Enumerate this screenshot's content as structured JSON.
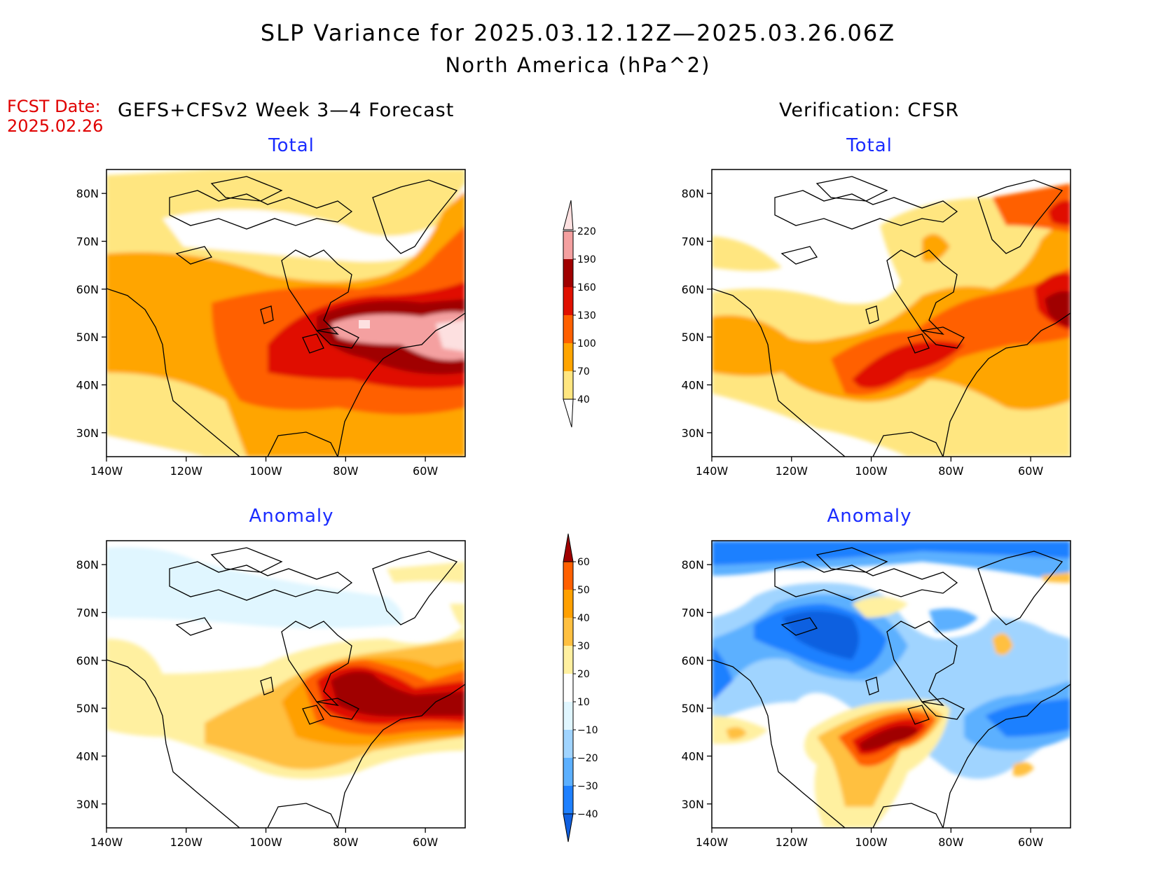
{
  "header": {
    "title": "SLP Variance for 2025.03.12.12Z—2025.03.26.06Z",
    "subtitle": "North America (hPa^2)",
    "fcst_label": "FCST Date:",
    "fcst_date": "2025.02.26",
    "left_heading": "GEFS+CFSv2 Week 3—4 Forecast",
    "right_heading": "Verification: CFSR"
  },
  "panels": {
    "fc_total": {
      "title": "Total"
    },
    "ver_total": {
      "title": "Total"
    },
    "fc_anom": {
      "title": "Anomaly"
    },
    "ver_anom": {
      "title": "Anomaly"
    }
  },
  "axes": {
    "lat_labels": [
      "80N",
      "70N",
      "60N",
      "50N",
      "40N",
      "30N"
    ],
    "lon_labels": [
      "140W",
      "120W",
      "100W",
      "80W",
      "60W"
    ],
    "lat_values": [
      80,
      70,
      60,
      50,
      40,
      30
    ],
    "lon_values": [
      -140,
      -120,
      -100,
      -80,
      -60
    ],
    "lat_range": [
      25,
      85
    ],
    "lon_range": [
      -140,
      -50
    ]
  },
  "colorbars": {
    "total": {
      "labels": [
        "40",
        "70",
        "100",
        "130",
        "160",
        "190",
        "220"
      ],
      "values": [
        40,
        70,
        100,
        130,
        160,
        190,
        220
      ],
      "colors": [
        "#ffe680",
        "#ffa500",
        "#ff6000",
        "#e01000",
        "#a00000",
        "#f4a0a0",
        "#fde0e0"
      ]
    },
    "anomaly": {
      "labels": [
        "−40",
        "−30",
        "−20",
        "−10",
        "10",
        "20",
        "30",
        "40",
        "50",
        "60"
      ],
      "values": [
        -40,
        -30,
        -20,
        -10,
        10,
        20,
        30,
        40,
        50,
        60
      ],
      "colors": [
        "#1060e0",
        "#1e80ff",
        "#5cb0ff",
        "#a0d4ff",
        "#e0f6ff",
        "#ffffff",
        "#fff0a0",
        "#ffc040",
        "#ffa000",
        "#ff6000",
        "#e01000",
        "#a00000"
      ]
    }
  },
  "colors": {
    "title_blue": "#1a2cff",
    "fcst_red": "#e00000",
    "coast": "#000000"
  }
}
